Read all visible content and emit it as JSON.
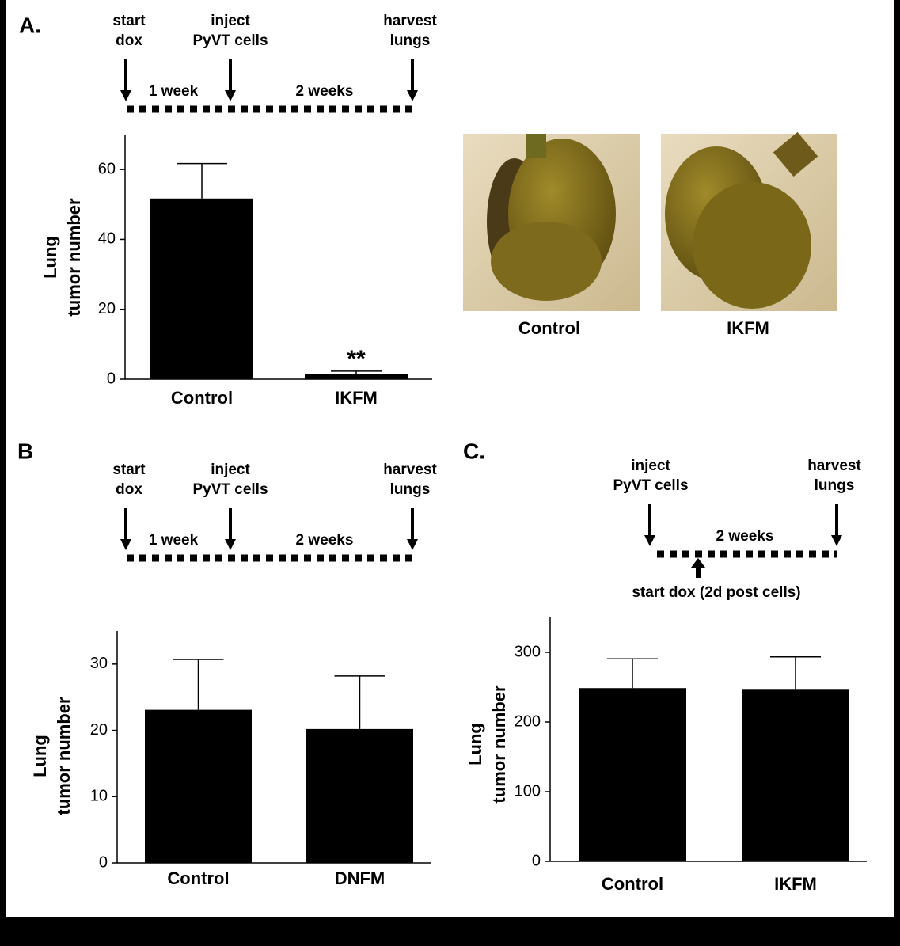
{
  "panels": [
    "A.",
    "B",
    "C."
  ],
  "timelines": [
    {
      "events": [
        [
          "start",
          "dox"
        ],
        [
          "inject",
          "PyVT cells"
        ],
        [
          "harvest",
          "lungs"
        ]
      ],
      "intervals": [
        "1 week",
        "2 weeks"
      ]
    },
    {
      "events": [
        [
          "start",
          "dox"
        ],
        [
          "inject",
          "PyVT cells"
        ],
        [
          "harvest",
          "lungs"
        ]
      ],
      "intervals": [
        "1 week",
        "2 weeks"
      ]
    },
    {
      "events": [
        [
          "inject",
          "PyVT cells"
        ],
        [
          "harvest",
          "lungs"
        ]
      ],
      "intervals": [
        "2 weeks"
      ],
      "note": "start dox (2d post cells)"
    }
  ],
  "photos": {
    "labels": [
      "Control",
      "IKFM"
    ]
  },
  "chart_data": [
    {
      "type": "bar",
      "ylabel": [
        "Lung",
        "tumor number"
      ],
      "categories": [
        "Control",
        "IKFM"
      ],
      "values": [
        51.7,
        1.4
      ],
      "errors": [
        10,
        0.9
      ],
      "color": "#000000",
      "ylim": [
        0,
        70
      ],
      "yticks": [
        0,
        20,
        40,
        60
      ],
      "annotations": [
        {
          "text": "**",
          "category": 1
        }
      ]
    },
    {
      "type": "bar",
      "ylabel": [
        "Lung",
        "tumor number"
      ],
      "categories": [
        "Control",
        "DNFM"
      ],
      "values": [
        23.1,
        20.2
      ],
      "errors": [
        7.6,
        8
      ],
      "color": "#000000",
      "ylim": [
        0,
        35
      ],
      "yticks": [
        0,
        10,
        20,
        30
      ]
    },
    {
      "type": "bar",
      "ylabel": [
        "Lung",
        "tumor number"
      ],
      "categories": [
        "Control",
        "IKFM"
      ],
      "values": [
        248.6,
        247.4
      ],
      "errors": [
        42,
        46
      ],
      "color": "#000000",
      "ylim": [
        0,
        350
      ],
      "yticks": [
        0,
        100,
        200,
        300
      ]
    }
  ]
}
